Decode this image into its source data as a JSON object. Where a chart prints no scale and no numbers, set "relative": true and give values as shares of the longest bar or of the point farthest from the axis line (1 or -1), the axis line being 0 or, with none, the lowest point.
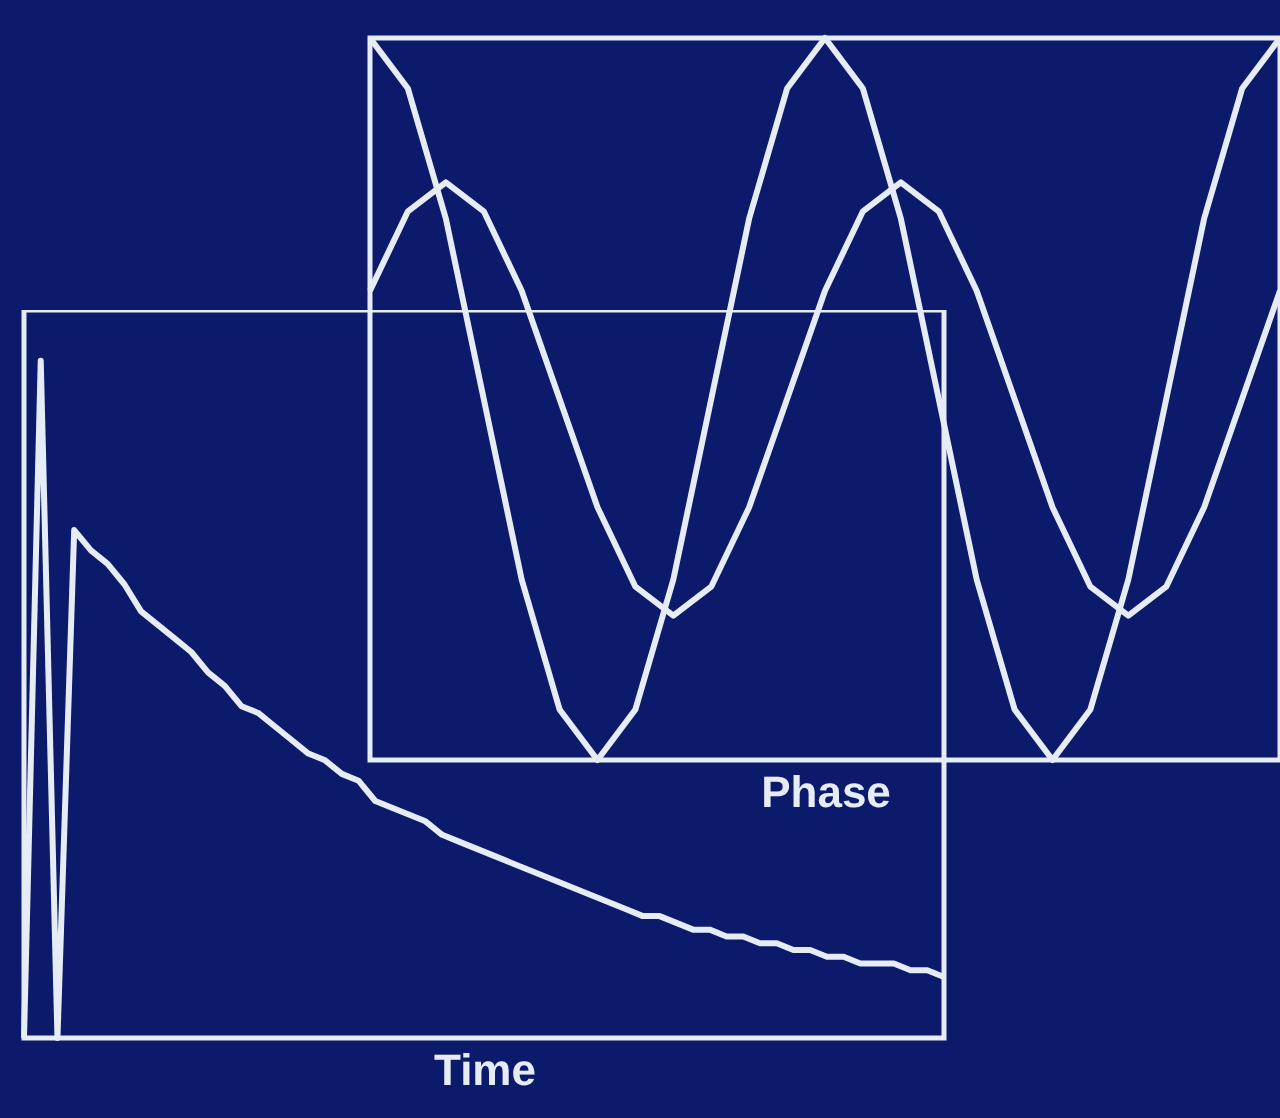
{
  "chart_data": [
    {
      "type": "line",
      "xlabel": "Phase",
      "relative": true,
      "categories": [
        null,
        null,
        null,
        null,
        null,
        null,
        null,
        null,
        null,
        null,
        null,
        null,
        null,
        null,
        null,
        null,
        null,
        null,
        null,
        null,
        null,
        null,
        null,
        null,
        null
      ],
      "series": [
        {
          "color": "#e6ecf5",
          "values": [
            1,
            0.93,
            0.75,
            0.5,
            0.25,
            0.07,
            0,
            0.07,
            0.25,
            0.5,
            0.75,
            0.93,
            1,
            0.93,
            0.75,
            0.5,
            0.25,
            0.07,
            0,
            0.07,
            0.25,
            0.5,
            0.75,
            0.93,
            1
          ]
        },
        {
          "color": "#e6ecf5",
          "values": [
            0.65,
            0.76,
            0.8,
            0.76,
            0.65,
            0.5,
            0.35,
            0.24,
            0.2,
            0.24,
            0.35,
            0.5,
            0.65,
            0.76,
            0.8,
            0.76,
            0.65,
            0.5,
            0.35,
            0.24,
            0.2,
            0.24,
            0.35,
            0.5,
            0.65
          ]
        }
      ]
    },
    {
      "type": "line",
      "xlabel": "Time",
      "relative": true,
      "categories": [
        null,
        null,
        null,
        null,
        null,
        null,
        null,
        null,
        null,
        null,
        null,
        null,
        null,
        null,
        null,
        null,
        null,
        null,
        null,
        null,
        null,
        null,
        null,
        null,
        null,
        null,
        null,
        null,
        null,
        null,
        null,
        null,
        null,
        null,
        null,
        null,
        null,
        null,
        null,
        null,
        null,
        null,
        null,
        null,
        null,
        null,
        null,
        null,
        null,
        null,
        null,
        null,
        null,
        null,
        null,
        null
      ],
      "series": [
        {
          "color": "#e6ecf5",
          "values": [
            0,
            1,
            0,
            0.75,
            0.72,
            0.7,
            0.67,
            0.63,
            0.61,
            0.59,
            0.57,
            0.54,
            0.52,
            0.49,
            0.48,
            0.46,
            0.44,
            0.42,
            0.41,
            0.39,
            0.38,
            0.35,
            0.34,
            0.33,
            0.32,
            0.3,
            0.29,
            0.28,
            0.27,
            0.26,
            0.25,
            0.24,
            0.23,
            0.22,
            0.21,
            0.2,
            0.19,
            0.18,
            0.18,
            0.17,
            0.16,
            0.16,
            0.15,
            0.15,
            0.14,
            0.14,
            0.13,
            0.13,
            0.12,
            0.12,
            0.11,
            0.11,
            0.11,
            0.1,
            0.1,
            0.09
          ]
        }
      ]
    }
  ]
}
